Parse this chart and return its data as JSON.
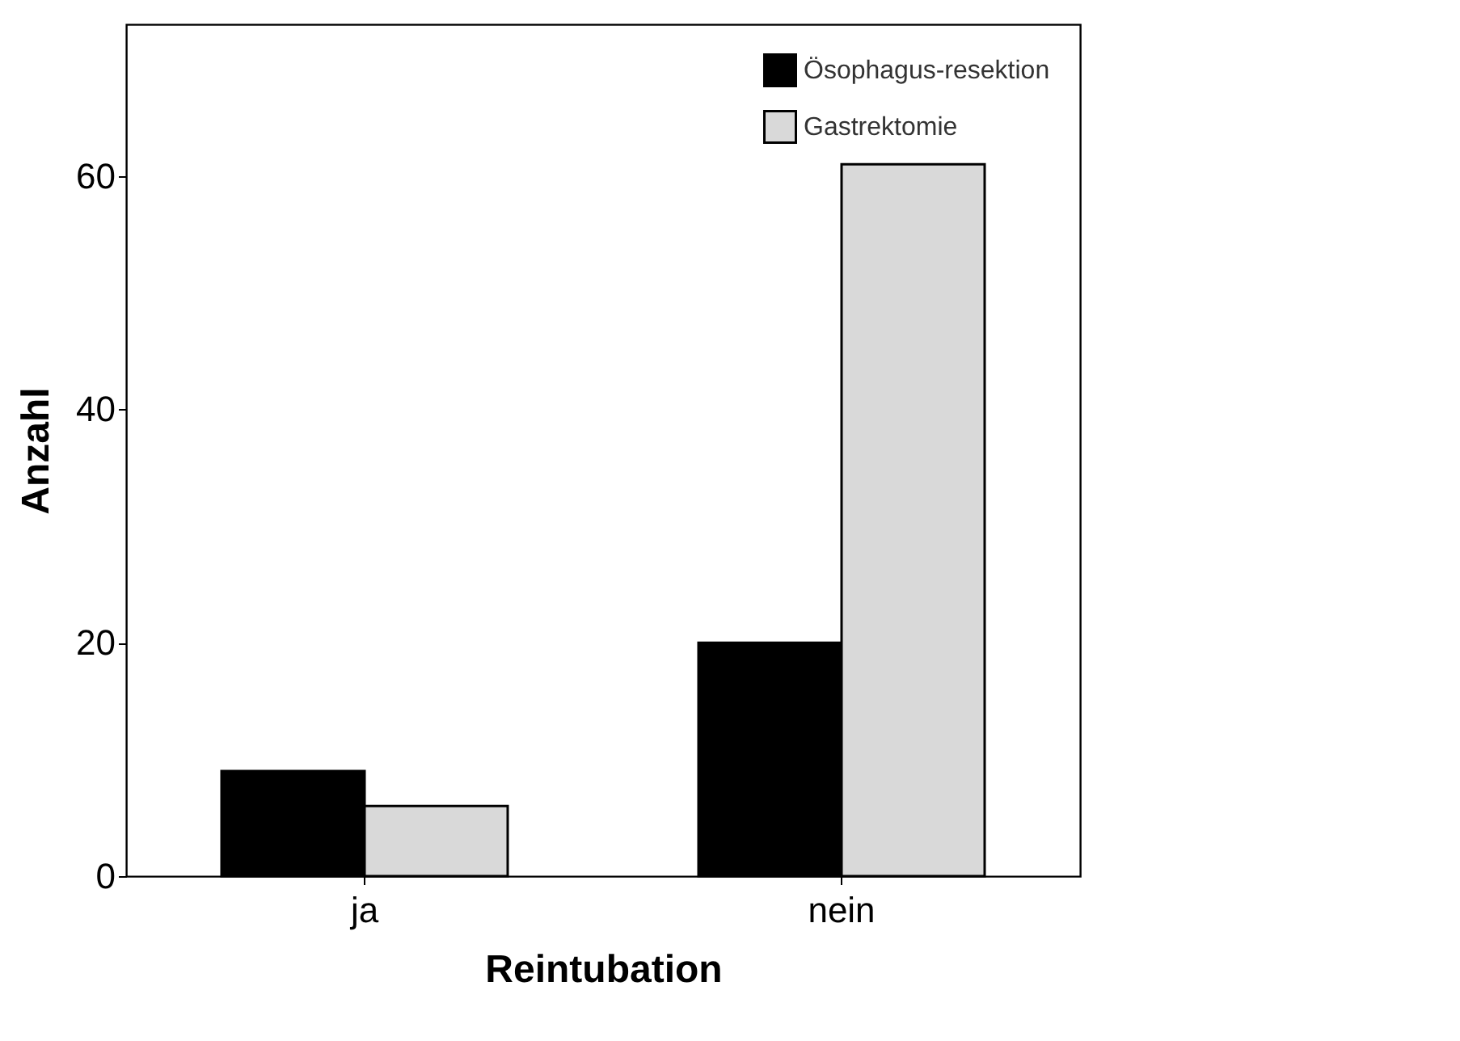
{
  "chart_data": {
    "type": "bar",
    "xlabel": "Reintubation",
    "ylabel": "Anzahl",
    "categories": [
      "ja",
      "nein"
    ],
    "series": [
      {
        "name": "Ösophagus-resektion",
        "color": "#000000",
        "values": [
          9,
          20
        ]
      },
      {
        "name": "Gastrektomie",
        "color": "#d9d9d9",
        "values": [
          6,
          61
        ]
      }
    ],
    "ylim": [
      0,
      73
    ],
    "yticks": [
      0,
      20,
      40,
      60
    ],
    "grid": false,
    "legend": "top right"
  }
}
